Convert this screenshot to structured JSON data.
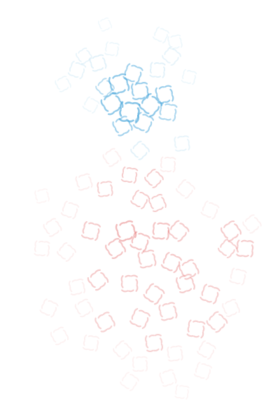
{
  "artwork": {
    "motif": "swirl-rosette-icon",
    "background_color": "#ffffff",
    "palette": {
      "blue": "#3a9fd8",
      "pale_blue": "#8ecbea",
      "red": "#e05a5a",
      "pale_red": "#f0a0a0"
    }
  }
}
